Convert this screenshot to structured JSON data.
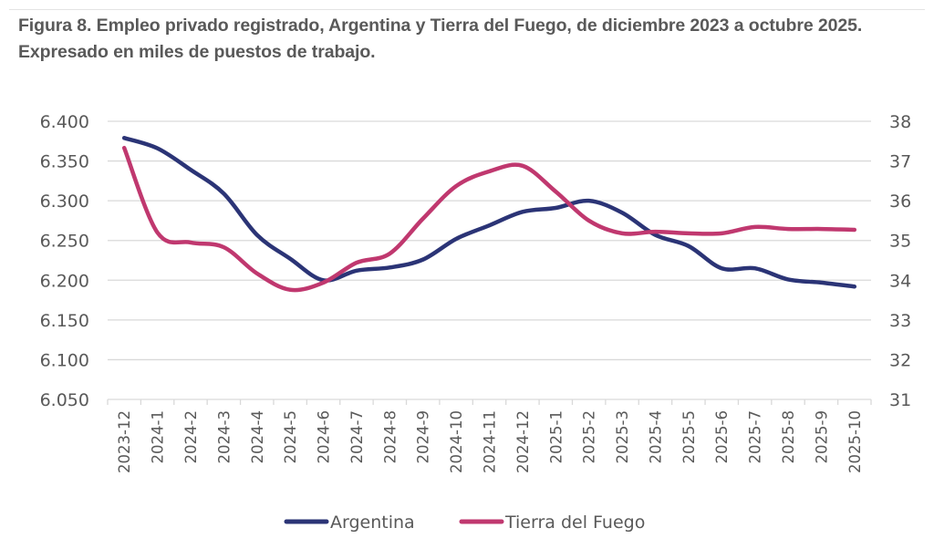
{
  "title": "Figura 8. Empleo privado registrado, Argentina y Tierra del Fuego, de diciembre 2023 a octubre 2025. Expresado en miles de puestos de trabajo.",
  "chart_data": {
    "type": "line",
    "title": "Figura 8. Empleo privado registrado, Argentina y Tierra del Fuego, de diciembre 2023 a octubre 2025. Expresado en miles de puestos de trabajo.",
    "xlabel": "",
    "ylabel": "",
    "categories": [
      "2023-12",
      "2024-1",
      "2024-2",
      "2024-3",
      "2024-4",
      "2024-5",
      "2024-6",
      "2024-7",
      "2024-8",
      "2024-9",
      "2024-10",
      "2024-11",
      "2024-12",
      "2025-1",
      "2025-2",
      "2025-3",
      "2025-4",
      "2025-5",
      "2025-6",
      "2025-7",
      "2025-8",
      "2025-9",
      "2025-10"
    ],
    "y_left": {
      "ylim": [
        6.05,
        6.4
      ],
      "ticks": [
        6.05,
        6.1,
        6.15,
        6.2,
        6.25,
        6.3,
        6.35,
        6.4
      ],
      "tick_labels": [
        "6.050",
        "6.100",
        "6.150",
        "6.200",
        "6.250",
        "6.300",
        "6.350",
        "6.400"
      ]
    },
    "y_right": {
      "ylim": [
        31,
        38
      ],
      "ticks": [
        31,
        32,
        33,
        34,
        35,
        36,
        37,
        38
      ],
      "tick_labels": [
        "31",
        "32",
        "33",
        "34",
        "35",
        "36",
        "37",
        "38"
      ]
    },
    "grid": true,
    "legend_position": "bottom",
    "series": [
      {
        "name": "Argentina",
        "axis": "left",
        "color": "#2b3476",
        "values": [
          6.379,
          6.366,
          6.339,
          6.309,
          6.257,
          6.227,
          6.2,
          6.212,
          6.216,
          6.226,
          6.252,
          6.269,
          6.286,
          6.291,
          6.3,
          6.285,
          6.257,
          6.243,
          6.215,
          6.215,
          6.201,
          6.197,
          6.192
        ]
      },
      {
        "name": "Tierra del Fuego",
        "axis": "right",
        "color": "#c0386f",
        "values": [
          37.33,
          35.2,
          34.95,
          34.83,
          34.17,
          33.76,
          33.94,
          34.44,
          34.67,
          35.55,
          36.37,
          36.74,
          36.88,
          36.23,
          35.5,
          35.18,
          35.22,
          35.18,
          35.18,
          35.34,
          35.29,
          35.29,
          35.27
        ]
      }
    ]
  }
}
